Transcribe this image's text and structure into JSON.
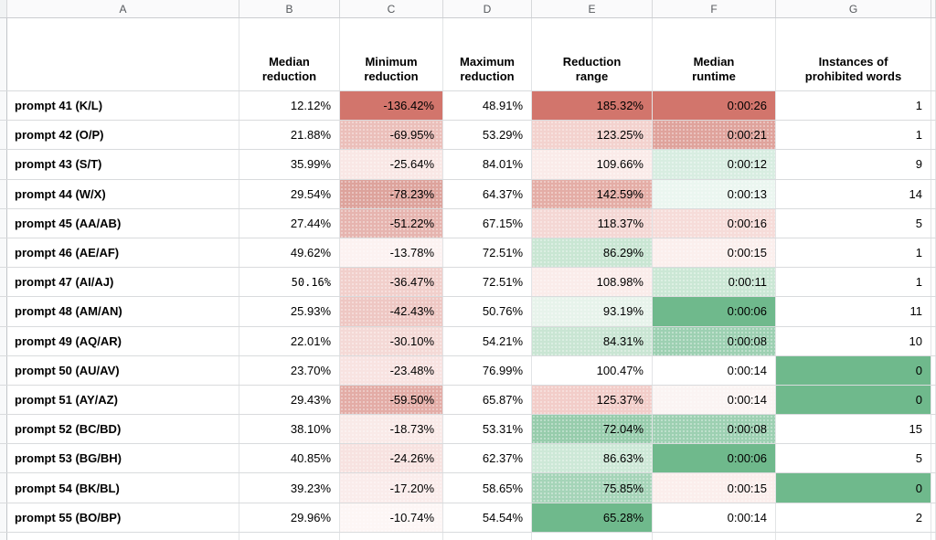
{
  "column_letters": [
    "A",
    "B",
    "C",
    "D",
    "E",
    "F",
    "G"
  ],
  "column_headers": [
    "",
    "Median\nreduction",
    "Minimum\nreduction",
    "Maximum\nreduction",
    "Reduction\nrange",
    "Median\nruntime",
    "Instances of\nprohibited words"
  ],
  "format_colors": {
    "full_red": "#D2756C",
    "full_green": "#6FB98C",
    "neutral": "#FFFFFF"
  },
  "rows": [
    {
      "label": "prompt 41 (K/L)",
      "median_reduction": "12.12%",
      "minimum_reduction": "-136.42%",
      "maximum_reduction": "48.91%",
      "reduction_range": "185.32%",
      "median_runtime": "0:00:26",
      "prohibited_words": "1",
      "bg": {
        "minimum_reduction": "#D2756C",
        "reduction_range": "#D2756C",
        "median_runtime": "#D2756C"
      }
    },
    {
      "label": "prompt 42 (O/P)",
      "median_reduction": "21.88%",
      "minimum_reduction": "-69.95%",
      "maximum_reduction": "53.29%",
      "reduction_range": "123.25%",
      "median_runtime": "0:00:21",
      "prohibited_words": "1",
      "bg": {
        "minimum_reduction": "#EBBFBA",
        "reduction_range": "#F3D2CE",
        "median_runtime": "#DFA39C"
      }
    },
    {
      "label": "prompt 43 (S/T)",
      "median_reduction": "35.99%",
      "minimum_reduction": "-25.64%",
      "maximum_reduction": "84.01%",
      "reduction_range": "109.66%",
      "median_runtime": "0:00:12",
      "prohibited_words": "9",
      "bg": {
        "minimum_reduction": "#F9E7E5",
        "reduction_range": "#FAEBE9",
        "median_runtime": "#D8EDE1"
      }
    },
    {
      "label": "prompt 44 (W/X)",
      "median_reduction": "29.54%",
      "minimum_reduction": "-78.23%",
      "maximum_reduction": "64.37%",
      "reduction_range": "142.59%",
      "median_runtime": "0:00:13",
      "prohibited_words": "14",
      "bg": {
        "minimum_reduction": "#DDA39C",
        "reduction_range": "#E4ADA6",
        "median_runtime": "#EBF6F0"
      }
    },
    {
      "label": "prompt 45 (AA/AB)",
      "median_reduction": "27.44%",
      "minimum_reduction": "-51.22%",
      "maximum_reduction": "67.15%",
      "reduction_range": "118.37%",
      "median_runtime": "0:00:16",
      "prohibited_words": "5",
      "bg": {
        "minimum_reduction": "#E6B4AF",
        "reduction_range": "#F4D7D4",
        "median_runtime": "#F6DCD9"
      }
    },
    {
      "label": "prompt 46 (AE/AF)",
      "median_reduction": "49.62%",
      "minimum_reduction": "-13.78%",
      "maximum_reduction": "72.51%",
      "reduction_range": "86.29%",
      "median_runtime": "0:00:15",
      "prohibited_words": "1",
      "bg": {
        "minimum_reduction": "#FCF2F1",
        "reduction_range": "#C9E6D3",
        "median_runtime": "#FBEFED"
      }
    },
    {
      "label": "prompt 47 (AI/AJ)",
      "median_reduction": "50.16%",
      "minimum_reduction": "-36.47%",
      "maximum_reduction": "72.51%",
      "reduction_range": "108.98%",
      "median_runtime": "0:00:11",
      "prohibited_words": "1",
      "median_font": "mono",
      "bg": {
        "minimum_reduction": "#F1CFCB",
        "reduction_range": "#FAECEA",
        "median_runtime": "#CBE7D5"
      }
    },
    {
      "label": "prompt 48 (AM/AN)",
      "median_reduction": "25.93%",
      "minimum_reduction": "-42.43%",
      "maximum_reduction": "50.76%",
      "reduction_range": "93.19%",
      "median_runtime": "0:00:06",
      "prohibited_words": "11",
      "bg": {
        "minimum_reduction": "#EEC7C3",
        "reduction_range": "#E7F3EB",
        "median_runtime": "#6FB98C"
      }
    },
    {
      "label": "prompt 49 (AQ/AR)",
      "median_reduction": "22.01%",
      "minimum_reduction": "-30.10%",
      "maximum_reduction": "54.21%",
      "reduction_range": "84.31%",
      "median_runtime": "0:00:08",
      "prohibited_words": "10",
      "bg": {
        "minimum_reduction": "#F4D9D6",
        "reduction_range": "#C9E5D3",
        "median_runtime": "#9DD0B2"
      }
    },
    {
      "label": "prompt 50 (AU/AV)",
      "median_reduction": "23.70%",
      "minimum_reduction": "-23.48%",
      "maximum_reduction": "76.99%",
      "reduction_range": "100.47%",
      "median_runtime": "0:00:14",
      "prohibited_words": "0",
      "bg": {
        "minimum_reduction": "#F8E3E1",
        "prohibited_words": "#6FB98C"
      }
    },
    {
      "label": "prompt 51 (AY/AZ)",
      "median_reduction": "29.43%",
      "minimum_reduction": "-59.50%",
      "maximum_reduction": "65.87%",
      "reduction_range": "125.37%",
      "median_runtime": "0:00:14",
      "prohibited_words": "0",
      "bg": {
        "minimum_reduction": "#E3ACA6",
        "reduction_range": "#F2CDC9",
        "median_runtime": "#FBF4F3",
        "prohibited_words": "#6FB98C"
      }
    },
    {
      "label": "prompt 52 (BC/BD)",
      "median_reduction": "38.10%",
      "minimum_reduction": "-18.73%",
      "maximum_reduction": "53.31%",
      "reduction_range": "72.04%",
      "median_runtime": "0:00:08",
      "prohibited_words": "15",
      "bg": {
        "minimum_reduction": "#F9EAE8",
        "reduction_range": "#97CCAC",
        "median_runtime": "#9DD0B2"
      }
    },
    {
      "label": "prompt 53 (BG/BH)",
      "median_reduction": "40.85%",
      "minimum_reduction": "-24.26%",
      "maximum_reduction": "62.37%",
      "reduction_range": "86.63%",
      "median_runtime": "0:00:06",
      "prohibited_words": "5",
      "bg": {
        "minimum_reduction": "#F7E2E0",
        "reduction_range": "#CDE8D7",
        "median_runtime": "#6FB98C"
      }
    },
    {
      "label": "prompt 54 (BK/BL)",
      "median_reduction": "39.23%",
      "minimum_reduction": "-17.20%",
      "maximum_reduction": "58.65%",
      "reduction_range": "75.85%",
      "median_runtime": "0:00:15",
      "prohibited_words": "0",
      "bg": {
        "minimum_reduction": "#FAECEB",
        "reduction_range": "#A5D4B8",
        "median_runtime": "#FBEEEC",
        "prohibited_words": "#6FB98C"
      }
    },
    {
      "label": "prompt 55 (BO/BP)",
      "median_reduction": "29.96%",
      "minimum_reduction": "-10.74%",
      "maximum_reduction": "54.54%",
      "reduction_range": "65.28%",
      "median_runtime": "0:00:14",
      "prohibited_words": "2",
      "bg": {
        "minimum_reduction": "#FDF6F5",
        "reduction_range": "#6FB98C"
      }
    }
  ]
}
